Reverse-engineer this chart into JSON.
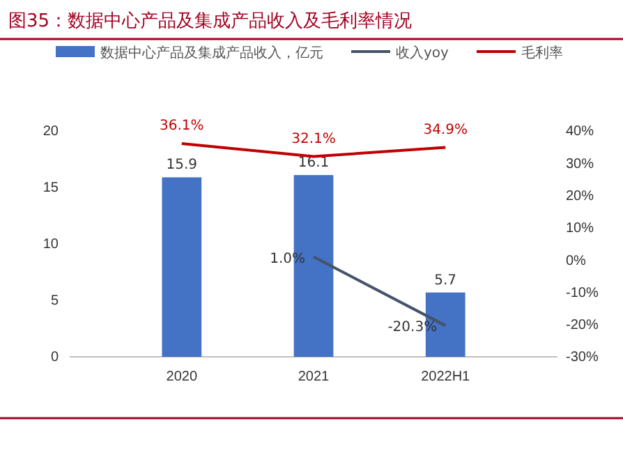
{
  "chart_data": {
    "type": "bar",
    "title": "图35：数据中心产品及集成产品收入及毛利率情况",
    "categories": [
      "2020",
      "2021",
      "2022H1"
    ],
    "series": [
      {
        "name": "数据中心产品及集成产品收入，亿元",
        "color": "#4472c4",
        "values": [
          15.9,
          16.1,
          5.7
        ],
        "value_labels": [
          "15.9",
          "16.1",
          "5.7"
        ]
      },
      {
        "name": "收入yoy",
        "type": "line",
        "axis": "y2",
        "color": "#44546a",
        "values": [
          null,
          1.0,
          -20.3
        ],
        "value_labels": [
          null,
          "1.0%",
          "-20.3%"
        ]
      },
      {
        "name": "毛利率",
        "type": "line",
        "axis": "y2",
        "color": "#c00000",
        "values": [
          36.1,
          32.1,
          34.9
        ],
        "value_labels": [
          "36.1%",
          "32.1%",
          "34.9%"
        ]
      }
    ],
    "ylim": [
      0,
      20
    ],
    "yticks": [
      0,
      5,
      10,
      15,
      20
    ],
    "y2lim": [
      -30,
      40
    ],
    "y2ticks": [
      {
        "value": -30,
        "label": "-30%"
      },
      {
        "value": -20,
        "label": "-20%"
      },
      {
        "value": -10,
        "label": "-10%"
      },
      {
        "value": 0,
        "label": "0%"
      },
      {
        "value": 10,
        "label": "10%"
      },
      {
        "value": 20,
        "label": "20%"
      },
      {
        "value": 30,
        "label": "30%"
      },
      {
        "value": 40,
        "label": "40%"
      }
    ],
    "legend": "top",
    "grid": false,
    "marker": "none"
  }
}
